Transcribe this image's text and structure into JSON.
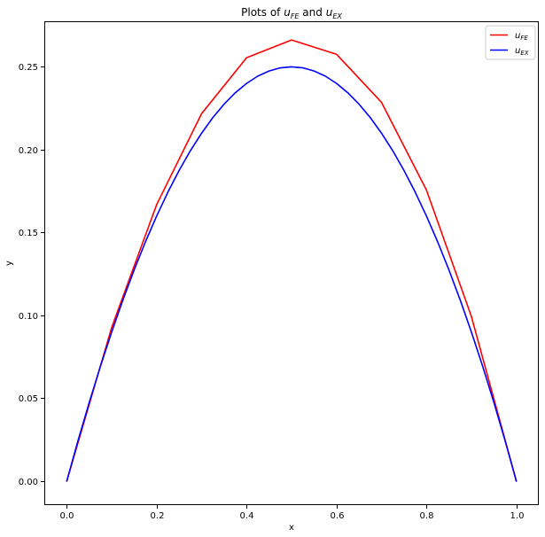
{
  "chart_data": {
    "type": "line",
    "title": {
      "prefix": "Plots of ",
      "series1_main": "u",
      "series1_sub": "FE",
      "middle": " and ",
      "series2_main": "u",
      "series2_sub": "EX"
    },
    "xlabel": "x",
    "ylabel": "y",
    "xlim": [
      -0.05,
      1.05
    ],
    "ylim": [
      -0.0145,
      0.2775
    ],
    "xticks": [
      {
        "value": 0.0,
        "label": "0.0"
      },
      {
        "value": 0.2,
        "label": "0.2"
      },
      {
        "value": 0.4,
        "label": "0.4"
      },
      {
        "value": 0.6,
        "label": "0.6"
      },
      {
        "value": 0.8,
        "label": "0.8"
      },
      {
        "value": 1.0,
        "label": "1.0"
      }
    ],
    "yticks": [
      {
        "value": 0.0,
        "label": "0.00"
      },
      {
        "value": 0.05,
        "label": "0.05"
      },
      {
        "value": 0.1,
        "label": "0.10"
      },
      {
        "value": 0.15,
        "label": "0.15"
      },
      {
        "value": 0.2,
        "label": "0.20"
      },
      {
        "value": 0.25,
        "label": "0.25"
      }
    ],
    "grid": false,
    "legend_position": "top-right",
    "series": [
      {
        "name_main": "u",
        "name_sub": "FE",
        "color": "#ff0000",
        "x": [
          0.0,
          0.1,
          0.2,
          0.3,
          0.4,
          0.5,
          0.6,
          0.7,
          0.8,
          0.9,
          1.0
        ],
        "y": [
          0.0,
          0.0928,
          0.1669,
          0.2218,
          0.2555,
          0.2662,
          0.2576,
          0.2286,
          0.1757,
          0.0994,
          0.0
        ]
      },
      {
        "name_main": "u",
        "name_sub": "EX",
        "color": "#0000ff",
        "x": [
          0.0,
          0.025,
          0.05,
          0.075,
          0.1,
          0.125,
          0.15,
          0.175,
          0.2,
          0.225,
          0.25,
          0.275,
          0.3,
          0.325,
          0.35,
          0.375,
          0.4,
          0.425,
          0.45,
          0.475,
          0.5,
          0.525,
          0.55,
          0.575,
          0.6,
          0.625,
          0.65,
          0.675,
          0.7,
          0.725,
          0.75,
          0.775,
          0.8,
          0.825,
          0.85,
          0.875,
          0.9,
          0.925,
          0.95,
          0.975,
          1.0
        ],
        "y": [
          0.0,
          0.0244,
          0.0475,
          0.0694,
          0.09,
          0.1094,
          0.1275,
          0.1444,
          0.16,
          0.1744,
          0.1875,
          0.1994,
          0.21,
          0.2194,
          0.2275,
          0.2344,
          0.24,
          0.2444,
          0.2475,
          0.2494,
          0.25,
          0.2494,
          0.2475,
          0.2444,
          0.24,
          0.2344,
          0.2275,
          0.2194,
          0.21,
          0.1994,
          0.1875,
          0.1744,
          0.16,
          0.1444,
          0.1275,
          0.1094,
          0.09,
          0.0694,
          0.0475,
          0.0244,
          0.0
        ]
      }
    ]
  }
}
